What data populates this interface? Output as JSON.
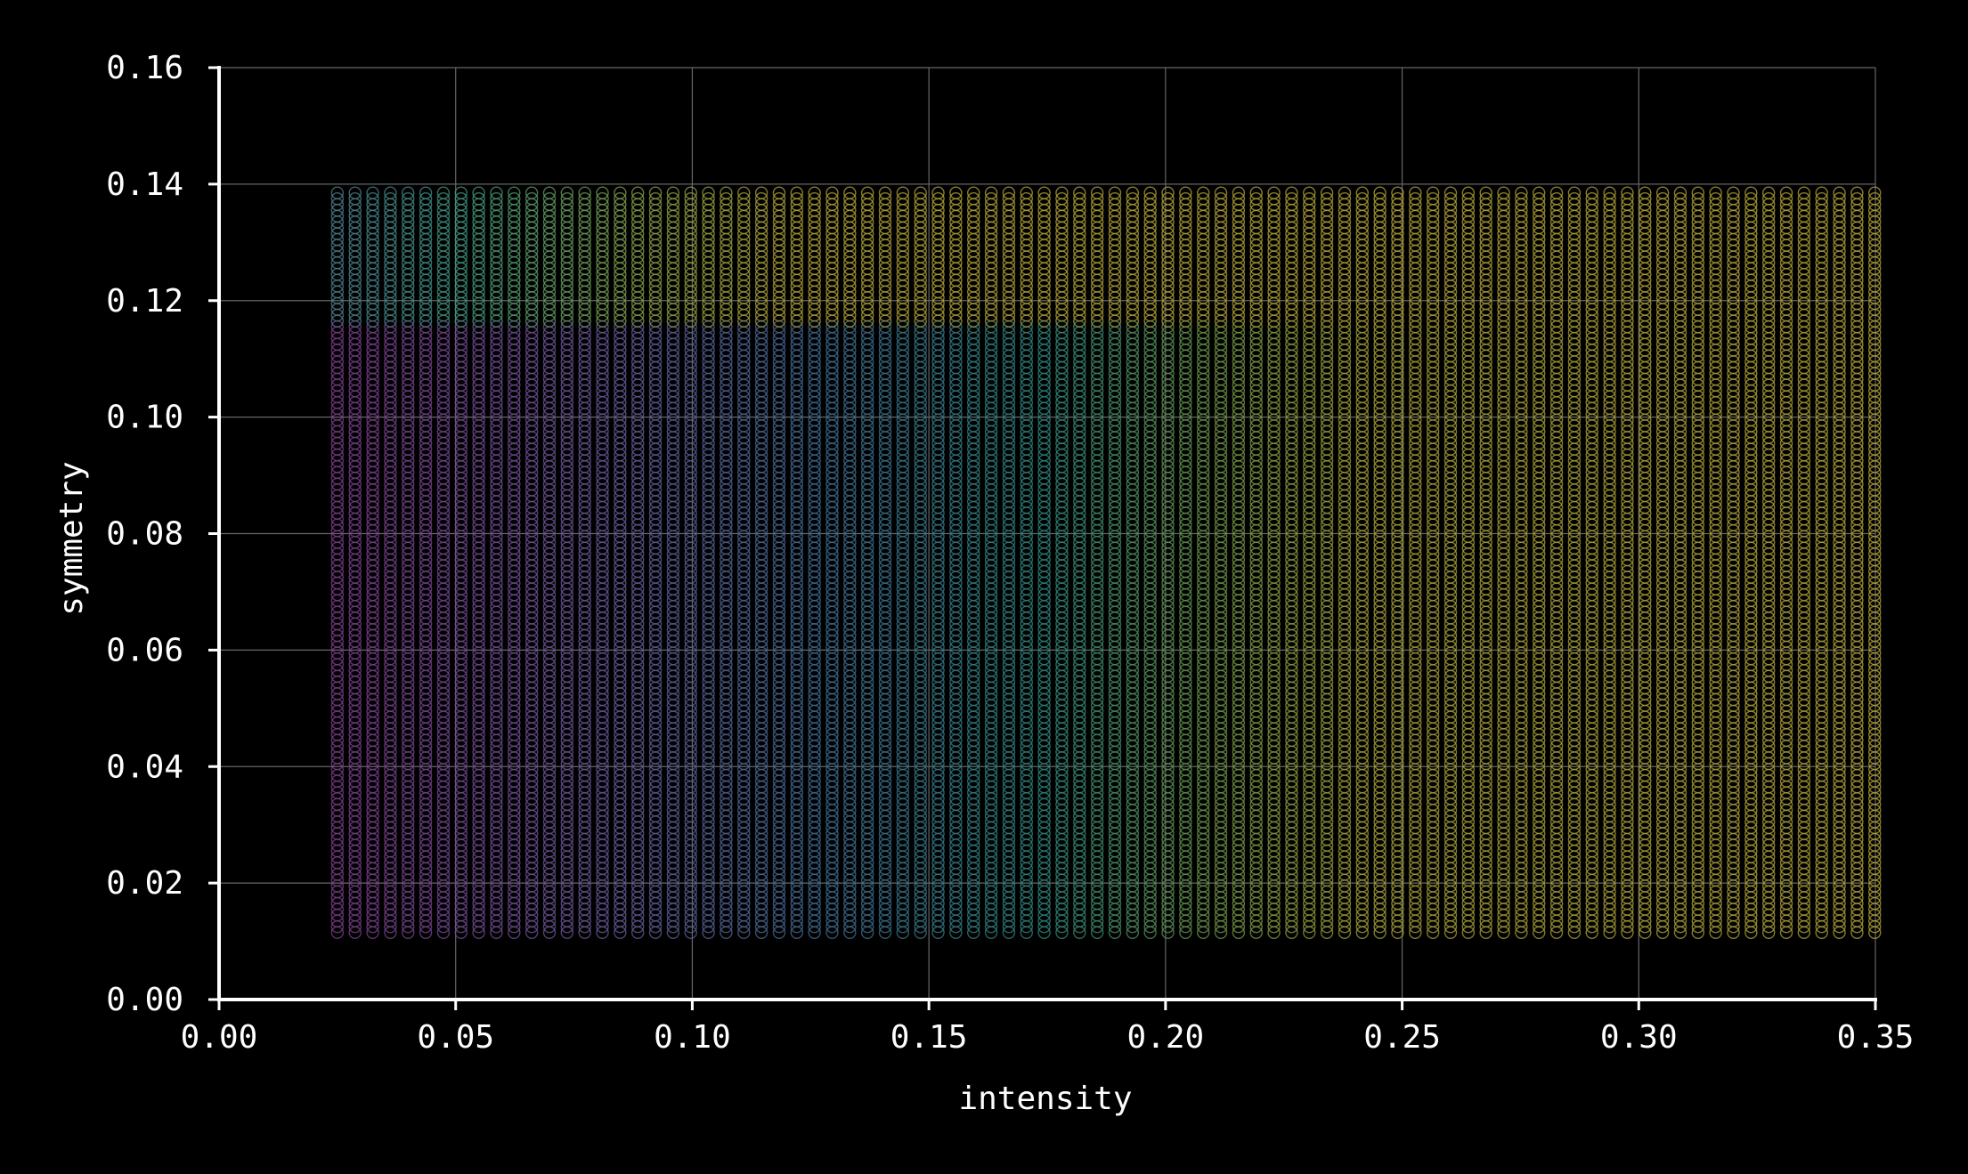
{
  "chart_data": {
    "type": "scatter",
    "title": "",
    "xlabel": "intensity",
    "ylabel": "symmetry",
    "xlim": [
      0.0,
      0.35
    ],
    "ylim": [
      0.0,
      0.16
    ],
    "x_ticks": [
      "0.00",
      "0.05",
      "0.10",
      "0.15",
      "0.20",
      "0.25",
      "0.30",
      "0.35"
    ],
    "y_ticks": [
      "0.00",
      "0.02",
      "0.04",
      "0.06",
      "0.08",
      "0.10",
      "0.12",
      "0.14",
      "0.16"
    ],
    "grid": true,
    "legend": "none",
    "background_color": "#000000",
    "grid_color": "#666666",
    "marker": "hollow-circle",
    "points": {
      "x_start": 0.025,
      "x_end": 0.35,
      "x_step": 0.003734,
      "y_start": 0.0115,
      "y_end": 0.1385,
      "y_step": 0.001,
      "color_by": "intensity"
    },
    "colormap": [
      {
        "x": 0.025,
        "color": "#7d3f8f"
      },
      {
        "x": 0.08,
        "color": "#6b5a9a"
      },
      {
        "x": 0.13,
        "color": "#3f6f95"
      },
      {
        "x": 0.175,
        "color": "#2f8a7f"
      },
      {
        "x": 0.21,
        "color": "#6f9a4a"
      },
      {
        "x": 0.24,
        "color": "#a6a23a"
      },
      {
        "x": 0.35,
        "color": "#b4a53a"
      }
    ],
    "column_top_colors": [
      {
        "x": 0.025,
        "color": "#4f7f8f"
      },
      {
        "x": 0.05,
        "color": "#3f9a85"
      },
      {
        "x": 0.09,
        "color": "#8aa24a"
      },
      {
        "x": 0.12,
        "color": "#b4a53a"
      },
      {
        "x": 0.35,
        "color": "#b4a53a"
      }
    ]
  }
}
